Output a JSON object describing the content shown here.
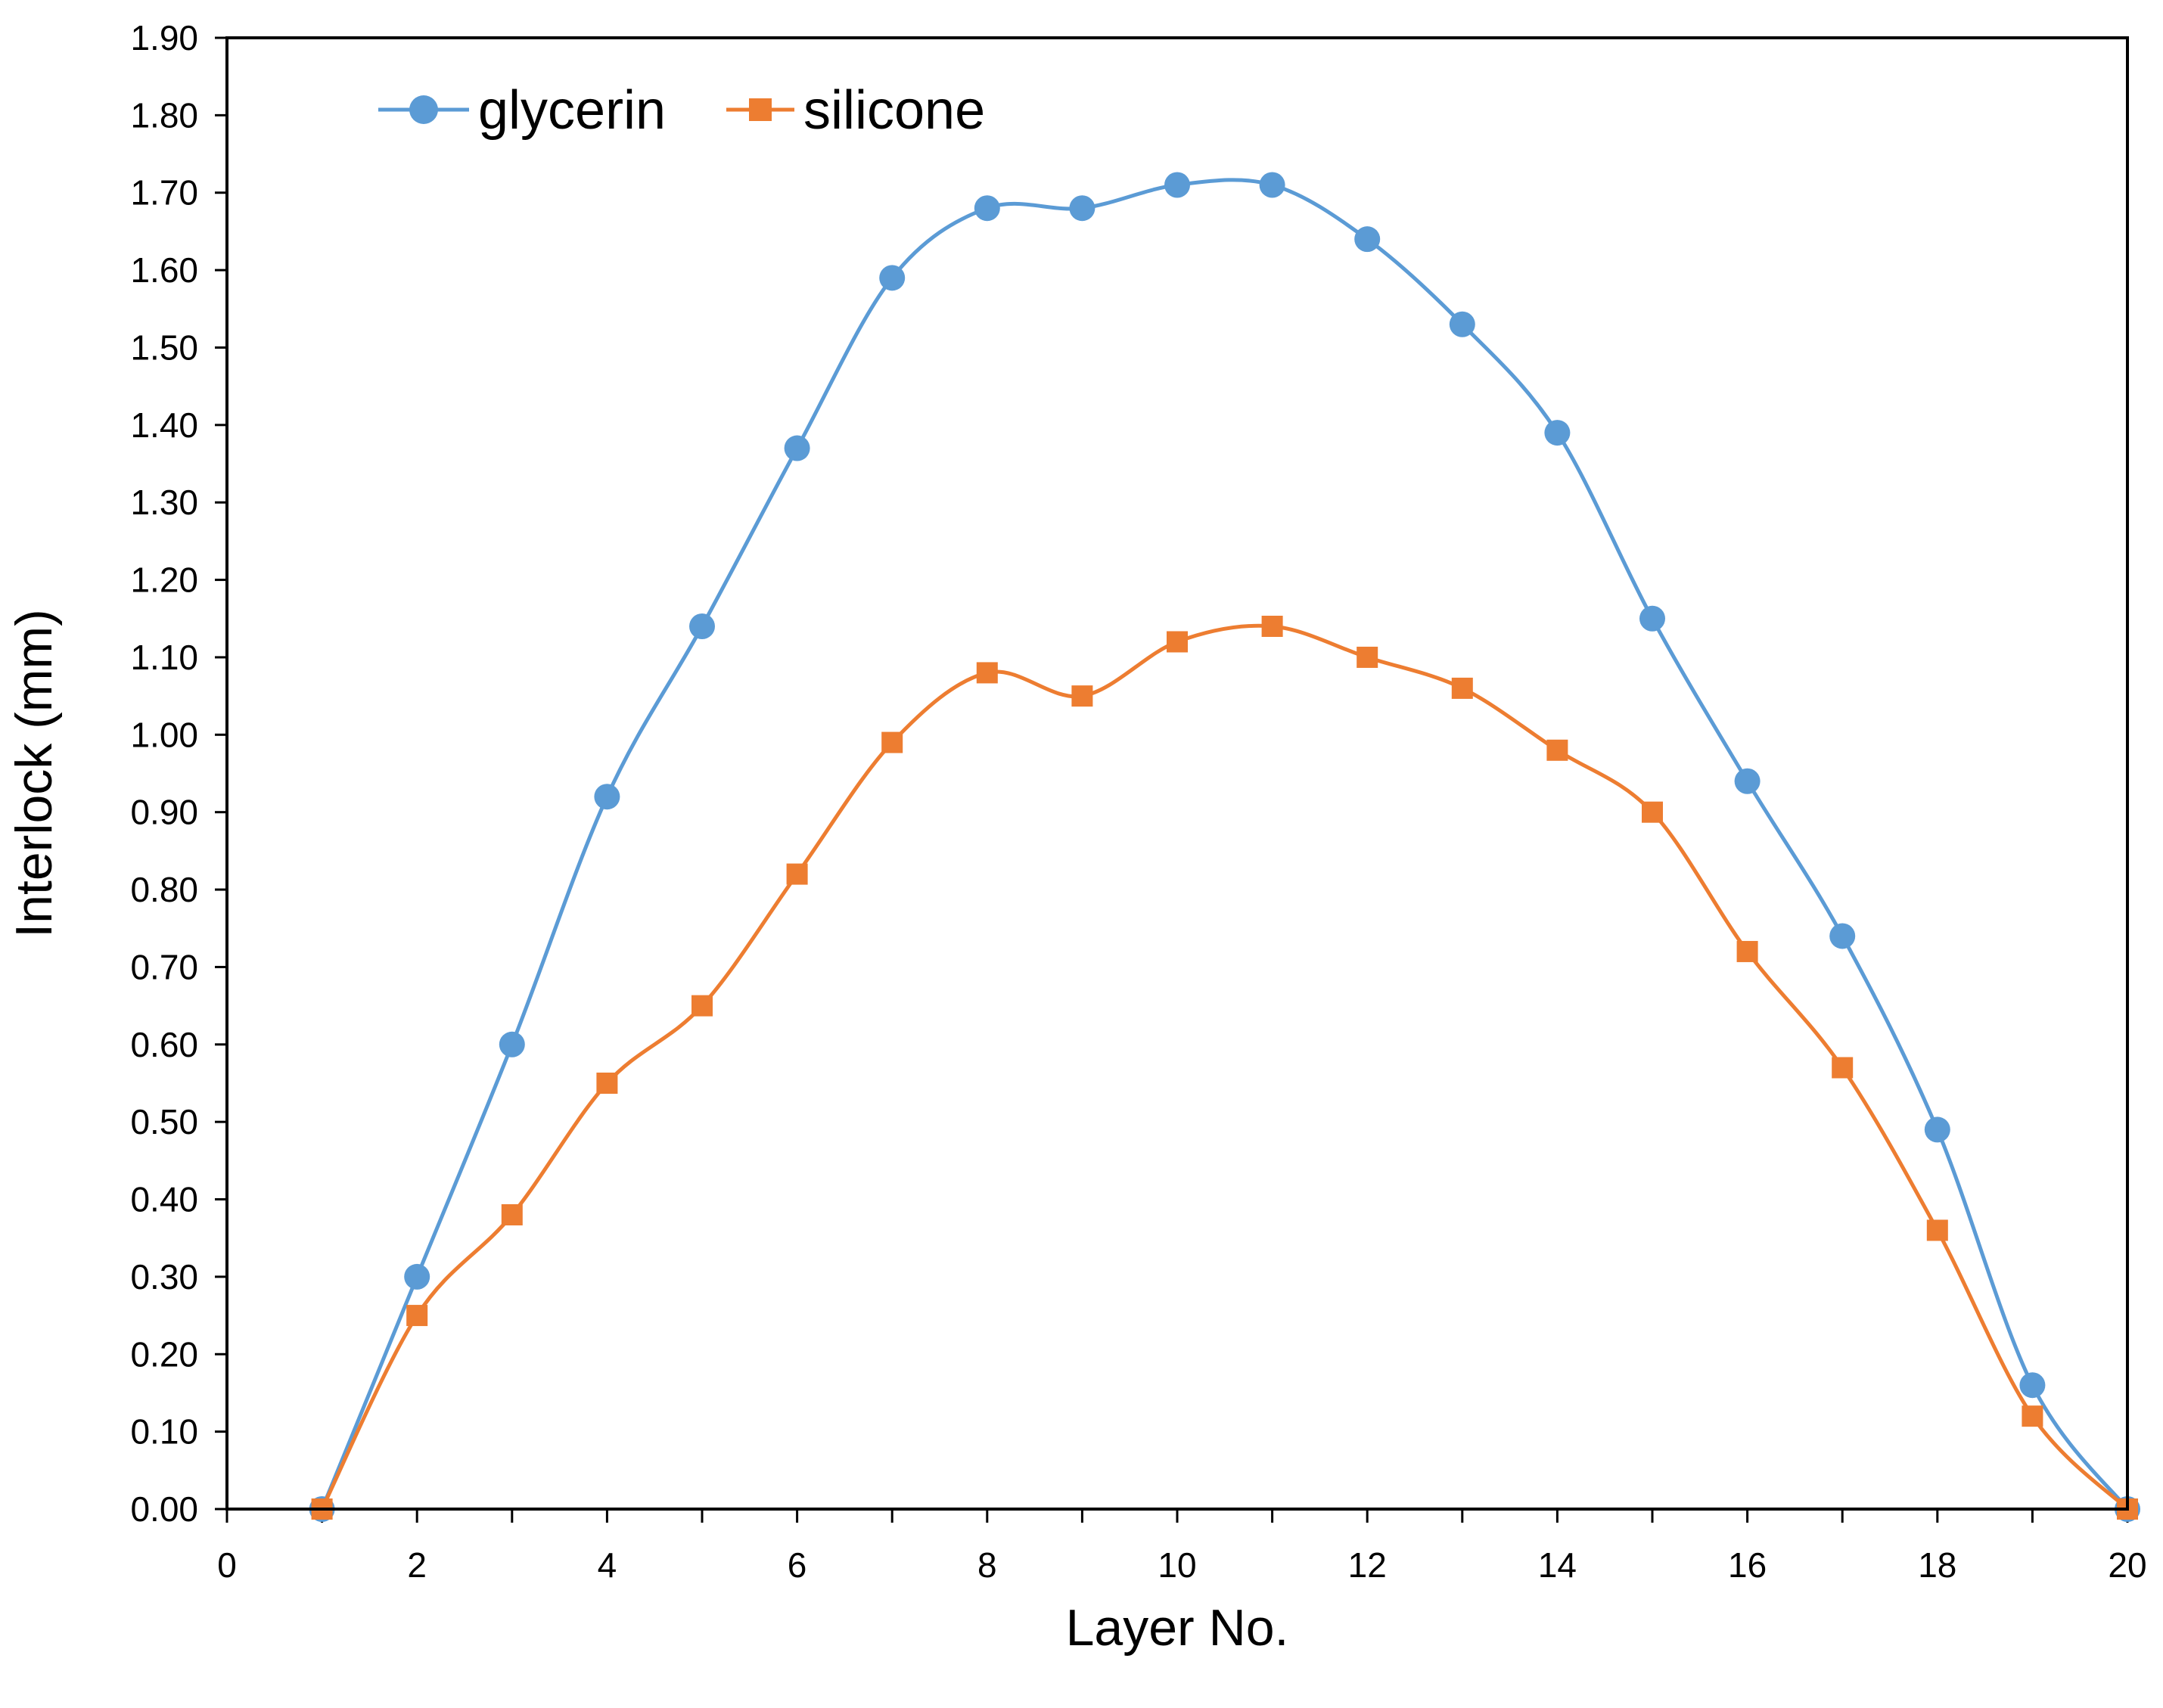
{
  "chart_data": {
    "type": "line",
    "title": "",
    "xlabel": "Layer No.",
    "ylabel": "Interlock (mm)",
    "xlim": [
      0,
      20
    ],
    "ylim": [
      0,
      1.9
    ],
    "x_ticks": [
      0,
      2,
      4,
      6,
      8,
      10,
      12,
      14,
      16,
      18,
      20
    ],
    "y_ticks": [
      0.0,
      0.1,
      0.2,
      0.3,
      0.4,
      0.5,
      0.6,
      0.7,
      0.8,
      0.9,
      1.0,
      1.1,
      1.2,
      1.3,
      1.4,
      1.5,
      1.6,
      1.7,
      1.8,
      1.9
    ],
    "y_tick_labels": [
      "0.00",
      "0.10",
      "0.20",
      "0.30",
      "0.40",
      "0.50",
      "0.60",
      "0.70",
      "0.80",
      "0.90",
      "1.00",
      "1.10",
      "1.20",
      "1.30",
      "1.40",
      "1.50",
      "1.60",
      "1.70",
      "1.80",
      "1.90"
    ],
    "x_tick_labels": [
      "0",
      "2",
      "4",
      "6",
      "8",
      "10",
      "12",
      "14",
      "16",
      "18",
      "20"
    ],
    "grid": false,
    "legend_position": "top-left",
    "x": [
      1,
      2,
      3,
      4,
      5,
      6,
      7,
      8,
      9,
      10,
      11,
      12,
      13,
      14,
      15,
      16,
      17,
      18,
      19,
      20
    ],
    "series": [
      {
        "name": "glycerin",
        "marker": "circle",
        "color": "#5B9BD5",
        "values": [
          0.0,
          0.3,
          0.6,
          0.92,
          1.14,
          1.37,
          1.59,
          1.68,
          1.68,
          1.71,
          1.71,
          1.64,
          1.53,
          1.39,
          1.15,
          0.94,
          0.74,
          0.49,
          0.16,
          0.0
        ]
      },
      {
        "name": "silicone",
        "marker": "square",
        "color": "#ED7D31",
        "values": [
          0.0,
          0.25,
          0.38,
          0.55,
          0.65,
          0.82,
          0.99,
          1.08,
          1.05,
          1.12,
          1.14,
          1.1,
          1.06,
          0.98,
          0.9,
          0.72,
          0.57,
          0.36,
          0.12,
          0.0
        ]
      }
    ]
  }
}
